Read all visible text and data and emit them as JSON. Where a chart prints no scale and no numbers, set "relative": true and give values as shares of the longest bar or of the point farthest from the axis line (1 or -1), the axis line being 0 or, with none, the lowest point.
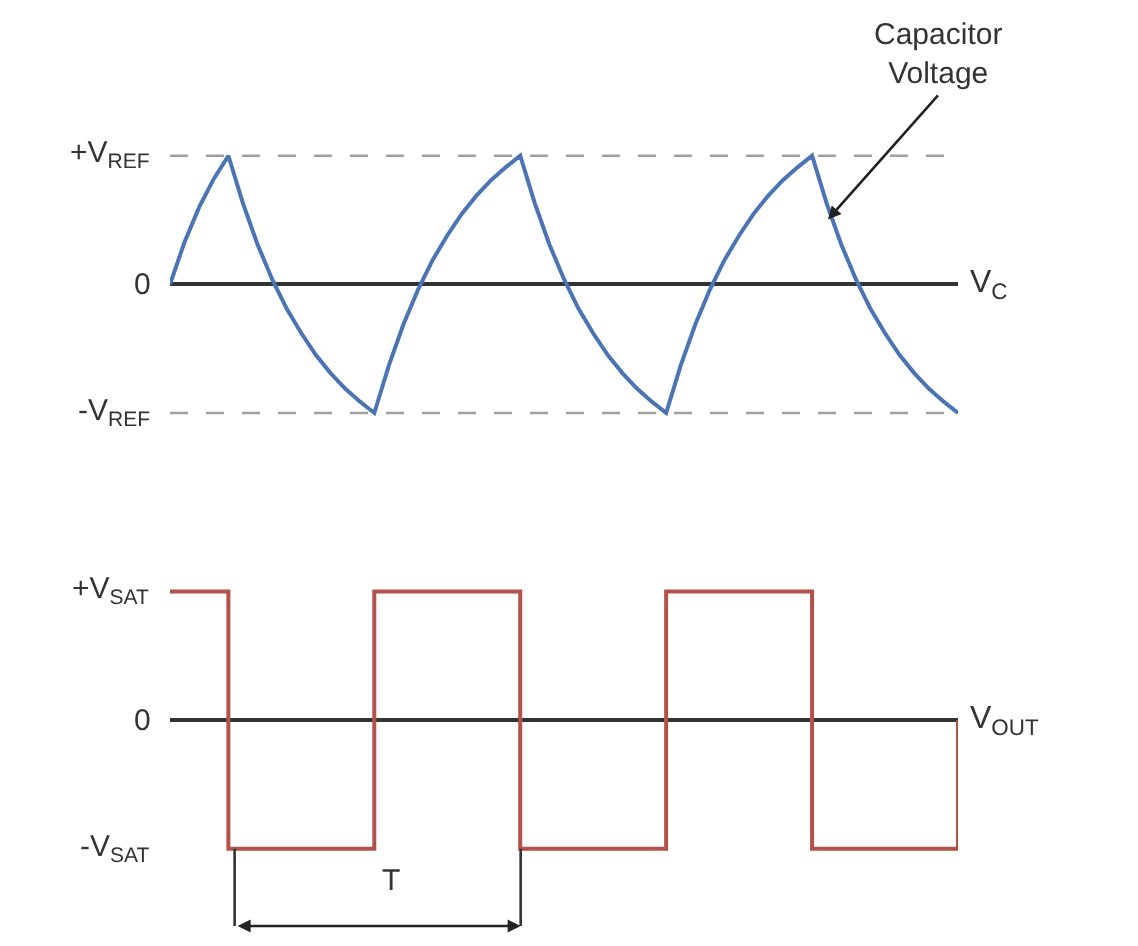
{
  "chart_data": [
    {
      "type": "line",
      "relative": true,
      "xlabel": "V$_{C}$",
      "grid": false,
      "line_style": "solid",
      "marker": "none",
      "categories": [
        null,
        null,
        null,
        null,
        null,
        null,
        null,
        null,
        null,
        null,
        null,
        null,
        null,
        null,
        null,
        null,
        null,
        null,
        null,
        null,
        null,
        null,
        null,
        null,
        null,
        null,
        null,
        null,
        null,
        null,
        null,
        null,
        null,
        null,
        null,
        null,
        null,
        null,
        null,
        null,
        null,
        null,
        null,
        null,
        null,
        null,
        null,
        null,
        null,
        null,
        null,
        null,
        null,
        null,
        null
      ],
      "series": [
        {
          "color": "#4a74b4",
          "values": [
            0,
            0.33,
            0.6,
            0.82,
            1,
            0.63,
            0.31,
            0.04,
            -0.19,
            -0.38,
            -0.55,
            -0.69,
            -0.81,
            -0.91,
            -1,
            -0.63,
            -0.31,
            -0.04,
            0.19,
            0.38,
            0.55,
            0.69,
            0.81,
            0.91,
            1,
            0.63,
            0.31,
            0.04,
            -0.19,
            -0.38,
            -0.55,
            -0.69,
            -0.81,
            -0.91,
            -1,
            -0.63,
            -0.31,
            -0.04,
            0.19,
            0.38,
            0.55,
            0.69,
            0.81,
            0.91,
            1,
            0.63,
            0.31,
            0.04,
            -0.19,
            -0.38,
            -0.55,
            -0.69,
            -0.81,
            -0.91,
            -1
          ]
        }
      ],
      "ref_lines": [
        {
          "axis": "y",
          "value": 1,
          "label": "+V$_{REF}$",
          "color": "#a0a0a0",
          "line_style": "dashed"
        },
        {
          "axis": "y",
          "value": 0,
          "label": "0",
          "color": "#333333",
          "line_style": "solid"
        },
        {
          "axis": "y",
          "value": -1,
          "label": "-V$_{REF}$",
          "color": "#a0a0a0",
          "line_style": "dashed"
        }
      ],
      "annotations": [
        "Capacitor\nVoltage"
      ]
    },
    {
      "type": "step",
      "relative": true,
      "xlabel": "V$_{OUT}$",
      "grid": false,
      "line_style": "solid",
      "marker": "none",
      "categories": [
        null,
        null,
        null,
        null,
        null,
        null,
        null,
        null,
        null,
        null,
        null,
        null,
        null,
        null,
        null,
        null,
        null,
        null,
        null,
        null,
        null,
        null,
        null,
        null,
        null,
        null,
        null,
        null,
        null,
        null,
        null,
        null,
        null,
        null,
        null,
        null,
        null,
        null,
        null,
        null,
        null,
        null,
        null,
        null,
        null,
        null,
        null,
        null,
        null,
        null,
        null,
        null,
        null,
        null,
        null
      ],
      "series": [
        {
          "color": "#b4524a",
          "values": [
            1,
            1,
            1,
            1,
            -1,
            -1,
            -1,
            -1,
            -1,
            -1,
            -1,
            -1,
            -1,
            -1,
            1,
            1,
            1,
            1,
            1,
            1,
            1,
            1,
            1,
            1,
            -1,
            -1,
            -1,
            -1,
            -1,
            -1,
            -1,
            -1,
            -1,
            -1,
            1,
            1,
            1,
            1,
            1,
            1,
            1,
            1,
            1,
            1,
            -1,
            -1,
            -1,
            -1,
            -1,
            -1,
            -1,
            -1,
            -1,
            -1,
            0
          ]
        }
      ],
      "annotations": [
        "+V$_{SAT}$",
        "0",
        "-V$_{SAT}$",
        "T"
      ]
    }
  ]
}
